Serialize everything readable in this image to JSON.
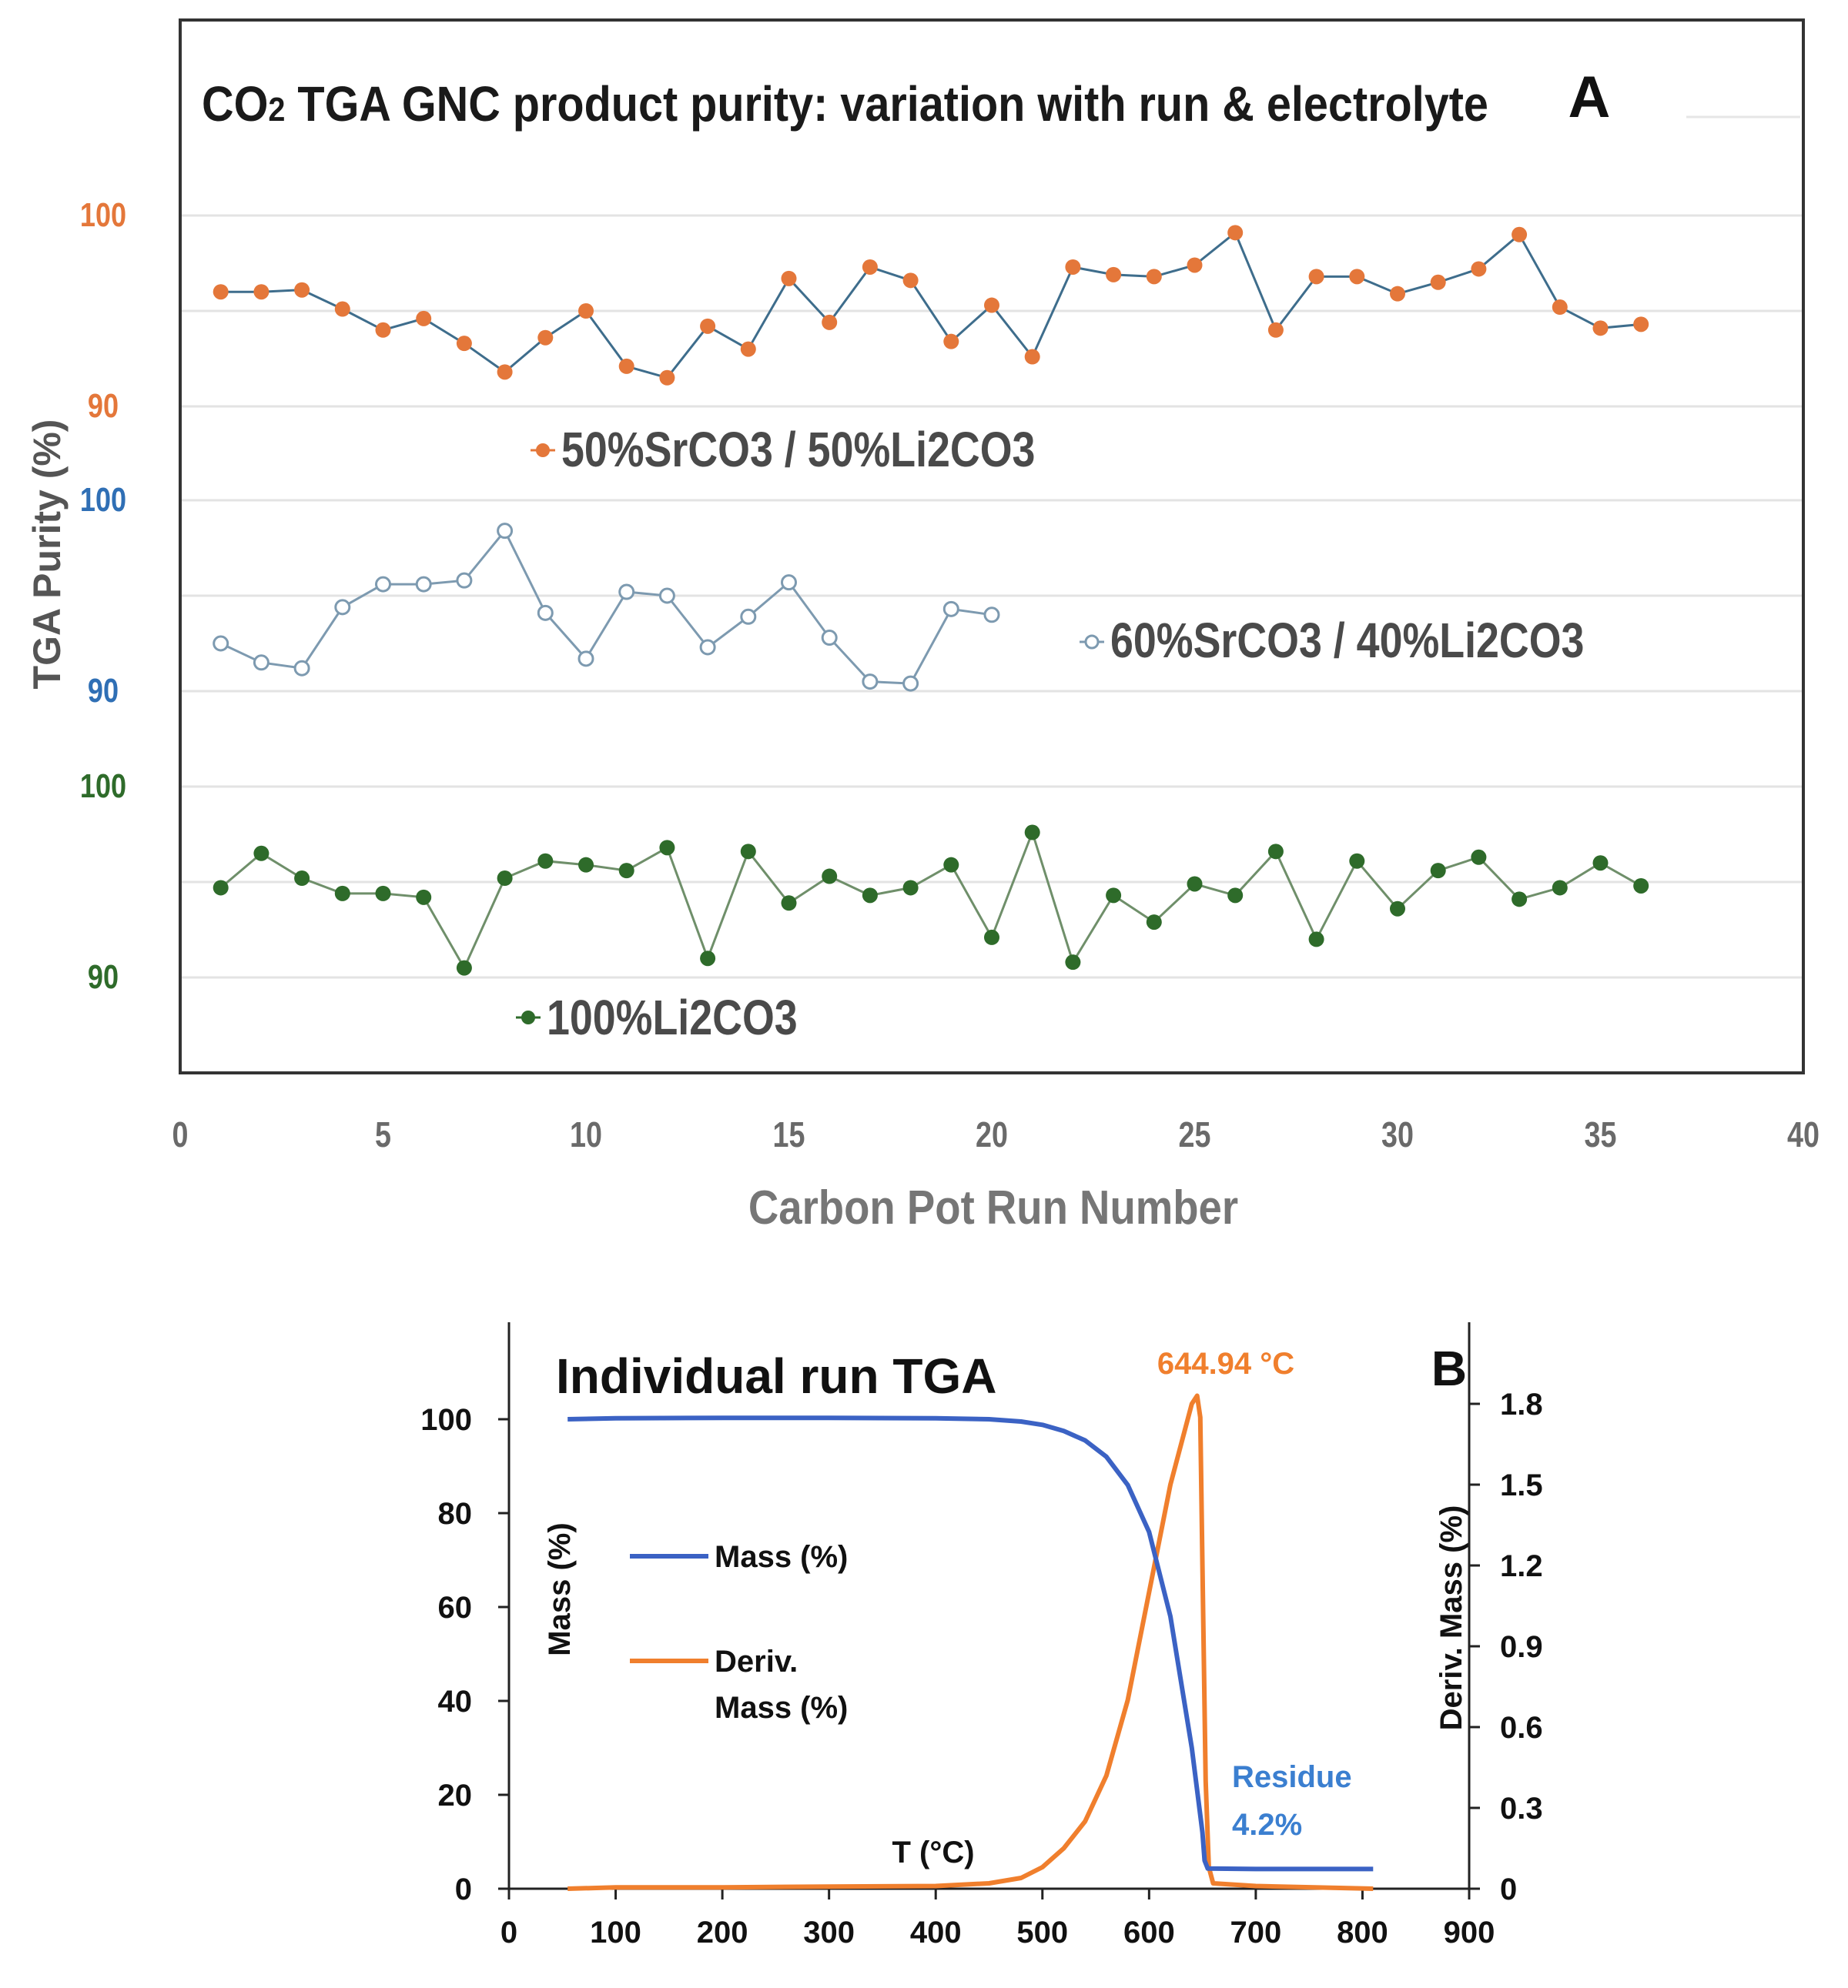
{
  "chart_data": [
    {
      "id": "A",
      "type": "line",
      "title": "CO2 TGA GNC  product purity: variation with run & electrolyte",
      "title_main": "CO",
      "title_sub": "2",
      "title_rest": " TGA GNC  product purity: variation with run & electrolyte",
      "panel_letter": "A",
      "xlabel": "Carbon Pot Run Number",
      "ylabel": "TGA Purity (%)",
      "xlim": [
        0,
        40
      ],
      "x_ticks": [
        0,
        5,
        10,
        15,
        20,
        25,
        30,
        35,
        40
      ],
      "x_tick_labels": [
        "0",
        "5",
        "10",
        "15",
        "20",
        "25",
        "30",
        "35",
        "40"
      ],
      "grid": true,
      "series": [
        {
          "name": "50%SrCO3 / 50%Li2CO3",
          "legend_marker": "•",
          "color": "#e4773a",
          "line_color": "#3e6d8c",
          "marker": "filled",
          "ylim": [
            90,
            100
          ],
          "y_tick_labels": [
            "100",
            "90"
          ],
          "x": [
            1,
            2,
            3,
            4,
            5,
            6,
            7,
            8,
            9,
            10,
            11,
            12,
            13,
            14,
            15,
            16,
            17,
            18,
            19,
            20,
            21,
            22,
            23,
            24,
            25,
            26,
            27,
            28,
            29,
            30,
            31,
            32,
            33,
            34,
            35,
            36
          ],
          "values": [
            96.0,
            96.0,
            96.1,
            95.1,
            94.0,
            94.6,
            93.3,
            91.8,
            93.6,
            95.0,
            92.1,
            91.5,
            94.2,
            93.0,
            96.7,
            94.4,
            97.3,
            96.6,
            93.4,
            95.3,
            92.6,
            97.3,
            96.9,
            96.8,
            97.4,
            99.1,
            94.0,
            96.8,
            96.8,
            95.9,
            96.5,
            97.2,
            99.0,
            95.2,
            94.1,
            94.3
          ]
        },
        {
          "name": "60%SrCO3 / 40%Li2CO3",
          "legend_marker": "◦",
          "color": "#5b7fa0",
          "line_color": "#7d9ab0",
          "marker": "open",
          "ylim": [
            90,
            100
          ],
          "y_tick_labels": [
            "100",
            "90"
          ],
          "x": [
            1,
            2,
            3,
            4,
            5,
            6,
            7,
            8,
            9,
            10,
            11,
            12,
            13,
            14,
            15,
            16,
            17,
            18,
            19,
            20
          ],
          "values": [
            92.5,
            91.5,
            91.2,
            94.4,
            95.6,
            95.6,
            95.8,
            98.4,
            94.1,
            91.7,
            95.2,
            95.0,
            92.3,
            93.9,
            95.7,
            92.8,
            90.5,
            90.4,
            94.3,
            94.0
          ]
        },
        {
          "name": "100%Li2CO3",
          "legend_marker": "•",
          "color": "#2e6b2a",
          "line_color": "#6f8f6a",
          "marker": "filled",
          "ylim": [
            90,
            100
          ],
          "y_tick_labels": [
            "100",
            "90"
          ],
          "x": [
            1,
            2,
            3,
            4,
            5,
            6,
            7,
            8,
            9,
            10,
            11,
            12,
            13,
            14,
            15,
            16,
            17,
            18,
            19,
            20,
            21,
            22,
            23,
            24,
            25,
            26,
            27,
            28,
            29,
            30,
            31,
            32,
            33,
            34,
            35,
            36
          ],
          "values": [
            94.7,
            96.5,
            95.2,
            94.4,
            94.4,
            94.2,
            90.5,
            95.2,
            96.1,
            95.9,
            95.6,
            96.8,
            91.0,
            96.6,
            93.9,
            95.3,
            94.3,
            94.7,
            95.9,
            92.1,
            97.6,
            90.8,
            94.3,
            92.9,
            94.9,
            94.3,
            96.6,
            92.0,
            96.1,
            93.6,
            95.6,
            96.3,
            94.1,
            94.7,
            96.0,
            94.8
          ]
        }
      ],
      "y_tick_colors": [
        "#e4773a",
        "#2f6fb5",
        "#2e6b2a"
      ]
    },
    {
      "id": "B",
      "type": "line",
      "title": "Individual run TGA",
      "panel_letter": "B",
      "xlabel": "T (°C)",
      "ylabel": "Mass (%)",
      "ylabel_right": "Deriv. Mass (%)",
      "xlim": [
        0,
        900
      ],
      "ylim": [
        0,
        100
      ],
      "ylim_right": [
        0,
        1.8
      ],
      "x_tick_labels": [
        "0",
        "100",
        "200",
        "300",
        "400",
        "500",
        "600",
        "700",
        "800",
        "900"
      ],
      "y_tick_labels": [
        "0",
        "20",
        "40",
        "60",
        "80",
        "100"
      ],
      "y_right_tick_labels": [
        "0",
        "0.3",
        "0.6",
        "0.9",
        "1.2",
        "1.5",
        "1.8"
      ],
      "grid": false,
      "legend": {
        "mass": "Mass (%)",
        "deriv_line1": "Deriv.",
        "deriv_line2": "Mass (%)"
      },
      "annotations": {
        "peak": "644.94 °C",
        "residue_line1": "Residue",
        "residue_line2": "4.2%"
      },
      "series": [
        {
          "name": "Mass (%)",
          "color": "#3b62c4",
          "axis": "left",
          "x": [
            55,
            100,
            200,
            300,
            400,
            450,
            480,
            500,
            520,
            540,
            560,
            580,
            600,
            620,
            640,
            650,
            652,
            655,
            700,
            750,
            810
          ],
          "values": [
            100,
            100.2,
            100.3,
            100.3,
            100.2,
            100.0,
            99.5,
            98.8,
            97.5,
            95.5,
            92,
            86,
            76,
            58,
            30,
            12,
            6,
            4.3,
            4.2,
            4.2,
            4.2
          ]
        },
        {
          "name": "Deriv. Mass (%)",
          "color": "#f07f2d",
          "axis": "right",
          "x": [
            55,
            100,
            200,
            300,
            400,
            450,
            480,
            500,
            520,
            540,
            560,
            580,
            600,
            620,
            640,
            645,
            648,
            650,
            653,
            656,
            660,
            700,
            810
          ],
          "values": [
            0,
            0.005,
            0.005,
            0.008,
            0.01,
            0.02,
            0.04,
            0.08,
            0.15,
            0.25,
            0.42,
            0.7,
            1.1,
            1.5,
            1.8,
            1.83,
            1.75,
            1.2,
            0.4,
            0.08,
            0.02,
            0.01,
            0.0
          ]
        }
      ]
    }
  ]
}
